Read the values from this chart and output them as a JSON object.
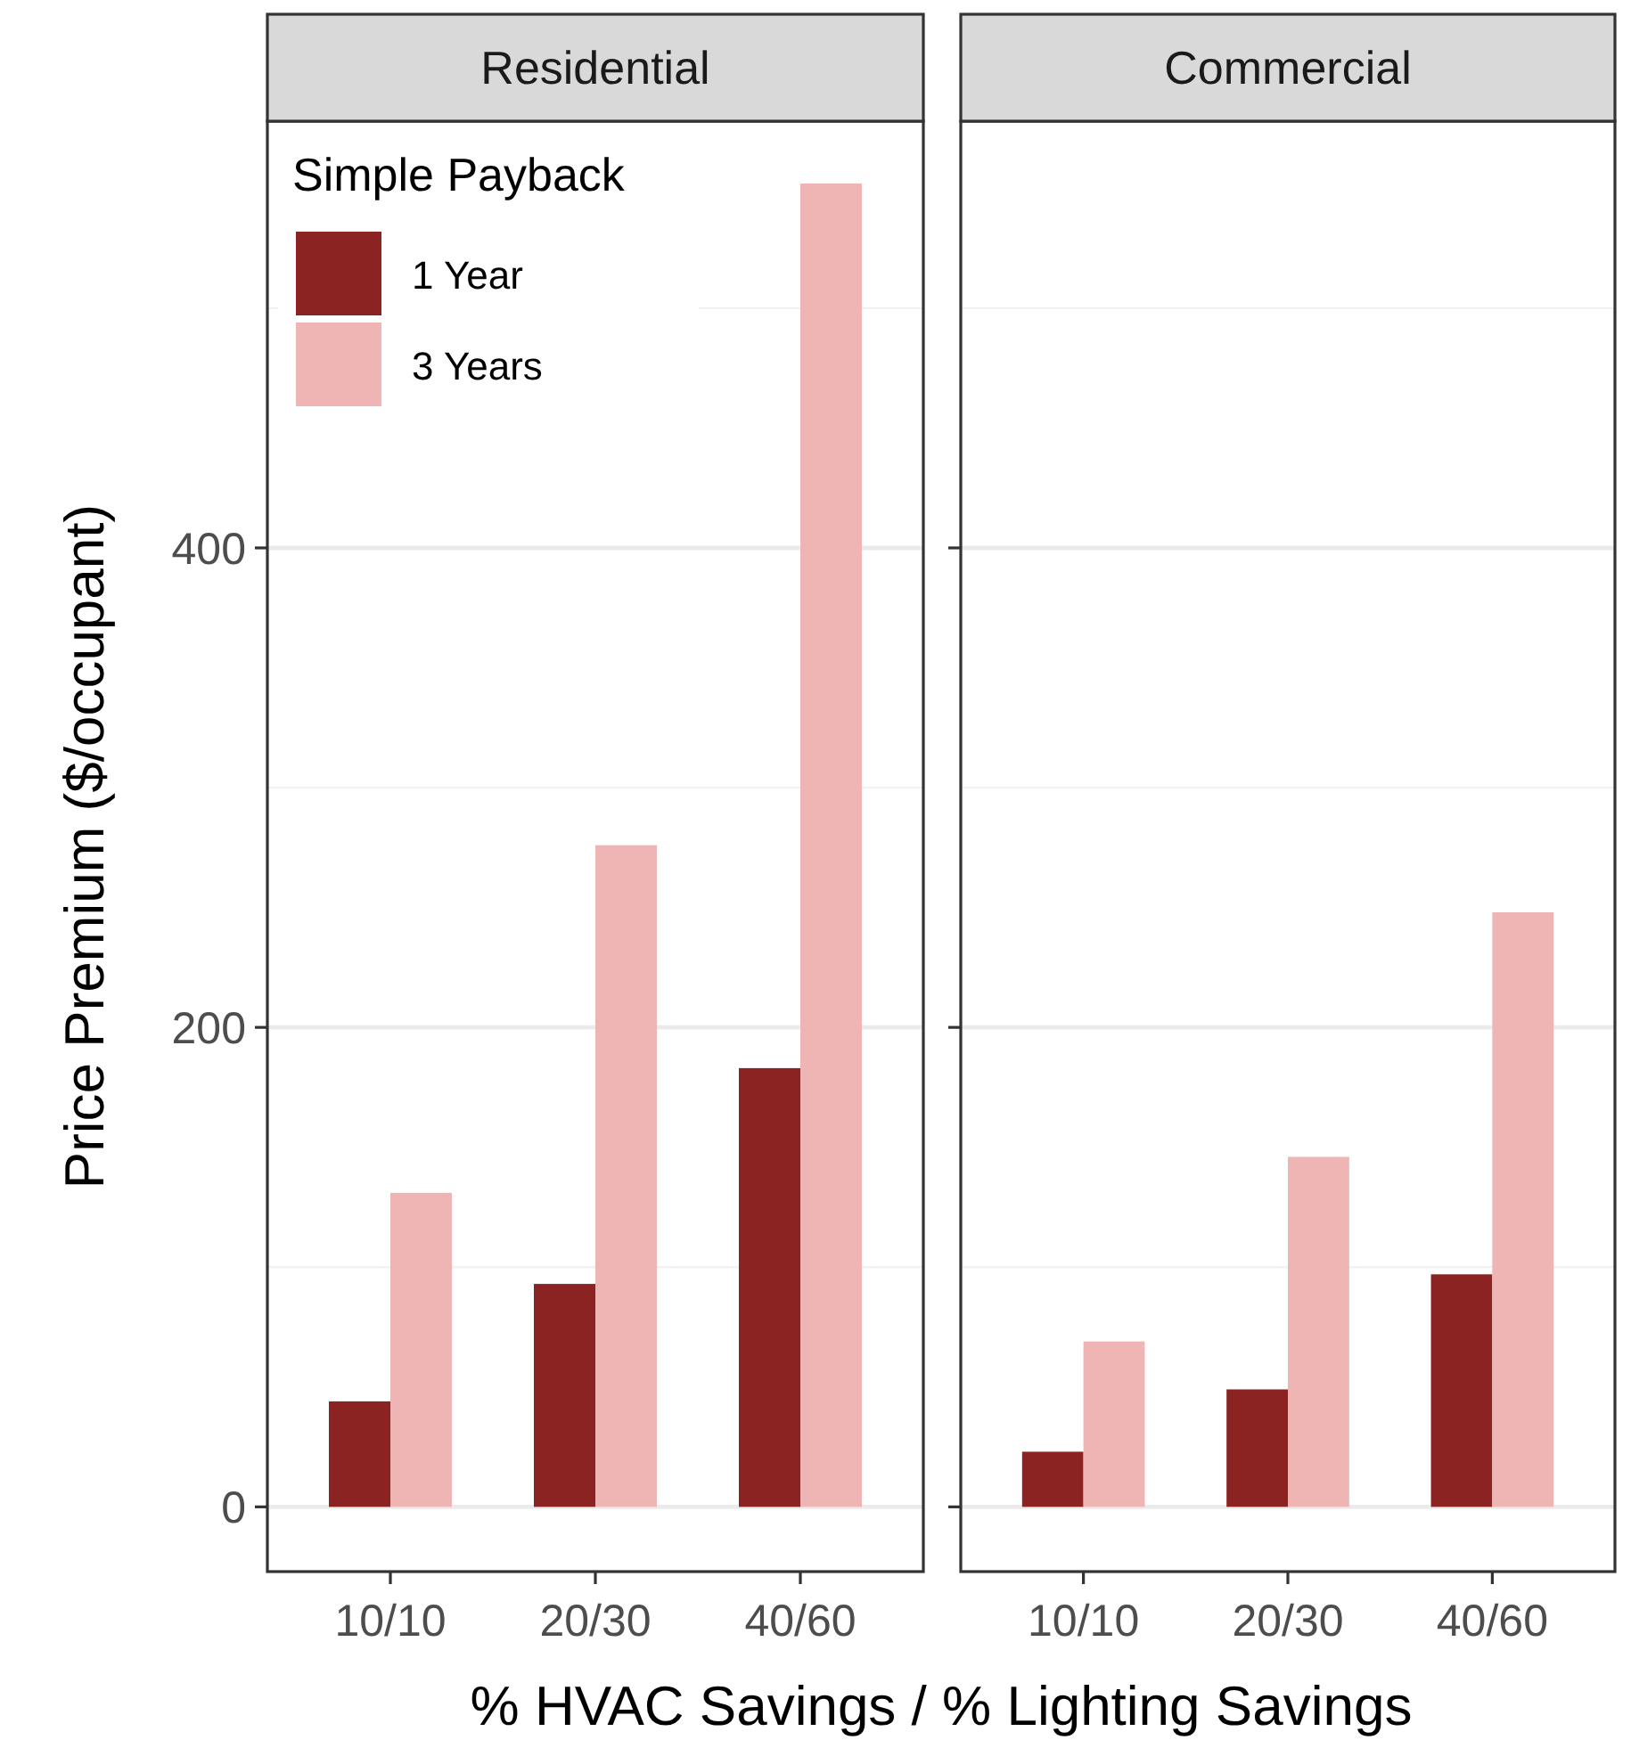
{
  "chart_data": [
    {
      "type": "bar",
      "title": "Residential",
      "xlabel": "% HVAC Savings / % Lighting Savings",
      "ylabel": "Price Premium ($/occupant)",
      "legend_title": "Simple Payback",
      "legend": "top left",
      "grid": "y",
      "categories": [
        "10/10",
        "20/30",
        "40/60"
      ],
      "ylim": [
        -27,
        578
      ],
      "yticks": [
        0,
        200,
        400
      ],
      "series": [
        {
          "name": "1 Year",
          "color": "#8b2323",
          "values": [
            44,
            93,
            183
          ]
        },
        {
          "name": "3 Years",
          "color": "#efb4b4",
          "values": [
            131,
            276,
            552
          ]
        }
      ]
    },
    {
      "type": "bar",
      "title": "Commercial",
      "grid": "y",
      "categories": [
        "10/10",
        "20/30",
        "40/60"
      ],
      "ylim": [
        -27,
        578
      ],
      "yticks": [
        0,
        200,
        400
      ],
      "tick_labels": "x",
      "series": [
        {
          "color": "#8b2323",
          "values": [
            23,
            49,
            97
          ]
        },
        {
          "color": "#efb4b4",
          "values": [
            69,
            146,
            248
          ]
        }
      ]
    }
  ]
}
